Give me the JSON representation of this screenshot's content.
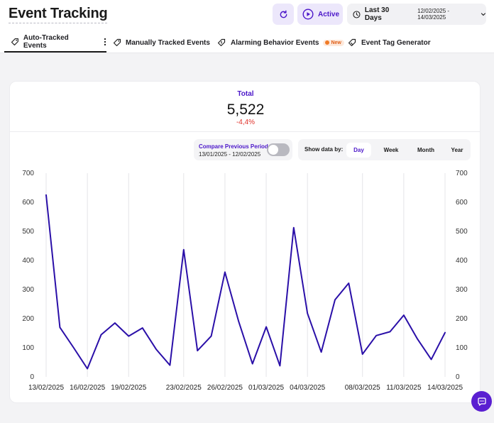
{
  "header": {
    "title": "Event Tracking",
    "active_label": "Active",
    "range_label": "Last 30 Days",
    "range_dates": "12/02/2025 - 14/03/2025"
  },
  "tabs": [
    {
      "label": "Auto-Tracked Events",
      "active": true
    },
    {
      "label": "Manually Tracked Events",
      "active": false
    },
    {
      "label": "Alarming Behavior Events",
      "active": false,
      "badge": "New"
    },
    {
      "label": "Event Tag Generator",
      "active": false
    }
  ],
  "summary": {
    "label": "Total",
    "value": "5,522",
    "change": "-4,4%"
  },
  "compare": {
    "label": "Compare Previous Period",
    "dates": "13/01/2025 - 12/02/2025",
    "enabled": false
  },
  "show_data": {
    "label": "Show data by:",
    "options": [
      "Day",
      "Week",
      "Month",
      "Year"
    ],
    "selected": "Day"
  },
  "colors": {
    "accent": "#4b16c9",
    "line": "#2a0fa8",
    "negative": "#e0332b"
  },
  "chart_data": {
    "type": "line",
    "title": "",
    "xlabel": "",
    "ylabel": "",
    "ylim": [
      0,
      700
    ],
    "yticks": [
      0,
      100,
      200,
      300,
      400,
      500,
      600,
      700
    ],
    "grid": "vertical",
    "x_tick_labels": [
      "13/02/2025",
      "16/02/2025",
      "19/02/2025",
      "23/02/2025",
      "26/02/2025",
      "01/03/2025",
      "04/03/2025",
      "08/03/2025",
      "11/03/2025",
      "14/03/2025"
    ],
    "x_tick_positions": [
      0,
      3,
      6,
      10,
      13,
      16,
      19,
      23,
      26,
      29
    ],
    "series": [
      {
        "values": [
          625,
          170,
          100,
          28,
          145,
          185,
          140,
          168,
          95,
          40,
          437,
          90,
          140,
          360,
          190,
          45,
          172,
          38,
          513,
          218,
          85,
          265,
          322,
          78,
          142,
          155,
          212,
          130,
          60,
          152
        ]
      }
    ]
  }
}
